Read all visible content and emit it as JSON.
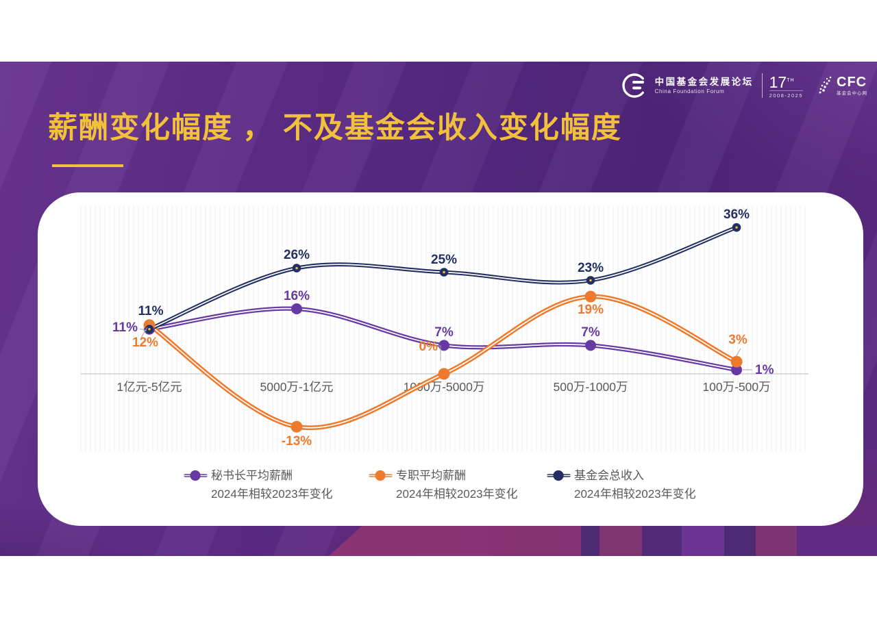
{
  "slide": {
    "title": "薪酬变化幅度 ， 不及基金会收入变化幅度"
  },
  "logos": {
    "cff_name_cn": "中国基金会发展论坛",
    "cff_name_en": "China Foundation Forum",
    "edition_number": "17",
    "edition_suffix": "TH",
    "edition_years": "2008-2025",
    "cfc_name": "CFC",
    "cfc_sub": "基金会中心网"
  },
  "chart_data": {
    "type": "line",
    "categories": [
      "1亿元-5亿元",
      "5000万-1亿元",
      "1000万-5000万",
      "500万-1000万",
      "100万-500万"
    ],
    "series": [
      {
        "name": "秘书长平均薪酬",
        "subtitle": "2024年相较2023年变化",
        "color": "#6639a3",
        "values": [
          11,
          16,
          7,
          7,
          1
        ],
        "labels": [
          "11%",
          "16%",
          "7%",
          "7%",
          "1%"
        ]
      },
      {
        "name": "专职平均薪酬",
        "subtitle": "2024年相较2023年变化",
        "color": "#ee7b2d",
        "values": [
          12,
          -13,
          0,
          19,
          3
        ],
        "labels": [
          "12%",
          "-13%",
          "0%",
          "19%",
          "3%"
        ]
      },
      {
        "name": "基金会总收入",
        "subtitle": "2024年相较2023年变化",
        "color": "#232f61",
        "values": [
          11,
          26,
          25,
          23,
          36
        ],
        "labels": [
          "11%",
          "26%",
          "25%",
          "23%",
          "36%"
        ]
      }
    ],
    "unit": "%",
    "ylim": [
      -20,
      42
    ],
    "grid": "vertical-pinstripes",
    "x_axis_zero_line": true,
    "legend_position": "bottom"
  },
  "colors": {
    "background_purple": "#5a2b84",
    "magenta_accent": "#a13174",
    "title_gold": "#f2c13c",
    "axis_gray": "#cfcfd4",
    "text_gray": "#595959"
  }
}
